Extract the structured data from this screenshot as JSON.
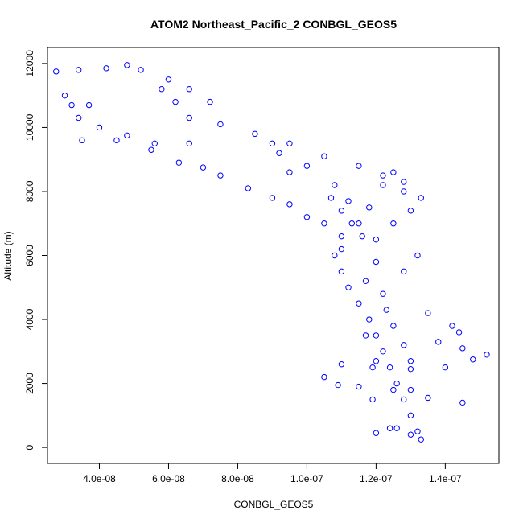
{
  "chart_data": {
    "type": "scatter",
    "title": "ATOM2 Northeast_Pacific_2 CONBGL_GEOS5",
    "xlabel": "CONBGL_GEOS5",
    "ylabel": "Altitude (m)",
    "xlim": [
      2.5e-08,
      1.555e-07
    ],
    "ylim": [
      -500,
      12500
    ],
    "xticks": [
      4e-08,
      6e-08,
      8e-08,
      1e-07,
      1.2e-07,
      1.4e-07
    ],
    "xtick_labels": [
      "4.0e-08",
      "6.0e-08",
      "8.0e-08",
      "1.0e-07",
      "1.2e-07",
      "1.4e-07"
    ],
    "yticks": [
      0,
      2000,
      4000,
      6000,
      8000,
      10000,
      12000
    ],
    "ytick_labels": [
      "0",
      "2000",
      "4000",
      "6000",
      "8000",
      "10000",
      "12000"
    ],
    "marker": "open-circle",
    "color": "#0000ff",
    "grid": false,
    "series": [
      {
        "points": [
          [
            2.75e-08,
            11750
          ],
          [
            3.4e-08,
            11800
          ],
          [
            4.2e-08,
            11850
          ],
          [
            4.8e-08,
            11950
          ],
          [
            5.2e-08,
            11800
          ],
          [
            6e-08,
            11500
          ],
          [
            6.6e-08,
            11200
          ],
          [
            7.2e-08,
            10800
          ],
          [
            5.8e-08,
            11200
          ],
          [
            6.2e-08,
            10800
          ],
          [
            3.2e-08,
            10700
          ],
          [
            3.7e-08,
            10700
          ],
          [
            3e-08,
            11000
          ],
          [
            3.4e-08,
            10300
          ],
          [
            4e-08,
            10000
          ],
          [
            4.8e-08,
            9750
          ],
          [
            5.6e-08,
            9500
          ],
          [
            6.6e-08,
            9500
          ],
          [
            6.6e-08,
            10300
          ],
          [
            7.5e-08,
            10100
          ],
          [
            8.5e-08,
            9800
          ],
          [
            9.5e-08,
            9500
          ],
          [
            1.05e-07,
            9100
          ],
          [
            1.15e-07,
            8800
          ],
          [
            1.22e-07,
            8500
          ],
          [
            1.28e-07,
            8300
          ],
          [
            1.33e-07,
            7800
          ],
          [
            1.3e-07,
            7400
          ],
          [
            1.25e-07,
            7000
          ],
          [
            1.2e-07,
            6500
          ],
          [
            3.5e-08,
            9600
          ],
          [
            4.5e-08,
            9600
          ],
          [
            5.5e-08,
            9300
          ],
          [
            6.3e-08,
            8900
          ],
          [
            7e-08,
            8750
          ],
          [
            7.5e-08,
            8500
          ],
          [
            8.3e-08,
            8100
          ],
          [
            9e-08,
            7800
          ],
          [
            9.5e-08,
            7600
          ],
          [
            1e-07,
            7200
          ],
          [
            1.05e-07,
            7000
          ],
          [
            1.1e-07,
            6600
          ],
          [
            1.08e-07,
            6000
          ],
          [
            1.1e-07,
            5500
          ],
          [
            1.12e-07,
            5000
          ],
          [
            1.15e-07,
            4500
          ],
          [
            1.18e-07,
            4000
          ],
          [
            1.2e-07,
            3500
          ],
          [
            1.22e-07,
            3000
          ],
          [
            1.24e-07,
            2500
          ],
          [
            1.26e-07,
            2000
          ],
          [
            1.28e-07,
            1500
          ],
          [
            1.3e-07,
            1000
          ],
          [
            1.32e-07,
            500
          ],
          [
            1.33e-07,
            250
          ],
          [
            1.2e-07,
            450
          ],
          [
            1.19e-07,
            1500
          ],
          [
            1.19e-07,
            2500
          ],
          [
            1.17e-07,
            3500
          ],
          [
            1.22e-07,
            4800
          ],
          [
            1.28e-07,
            5500
          ],
          [
            1.32e-07,
            6000
          ],
          [
            1.25e-07,
            3800
          ],
          [
            1.28e-07,
            3200
          ],
          [
            1.3e-07,
            2700
          ],
          [
            1.35e-07,
            4200
          ],
          [
            1.42e-07,
            3800
          ],
          [
            1.44e-07,
            3600
          ],
          [
            1.38e-07,
            3300
          ],
          [
            1.45e-07,
            3100
          ],
          [
            1.52e-07,
            2900
          ],
          [
            1.48e-07,
            2750
          ],
          [
            1.4e-07,
            2500
          ],
          [
            1.3e-07,
            2450
          ],
          [
            1.2e-07,
            2700
          ],
          [
            1.1e-07,
            2600
          ],
          [
            1.05e-07,
            2200
          ],
          [
            1.09e-07,
            1950
          ],
          [
            1.15e-07,
            1900
          ],
          [
            1.25e-07,
            1800
          ],
          [
            1.35e-07,
            1550
          ],
          [
            1.45e-07,
            1400
          ],
          [
            1.3e-07,
            1800
          ],
          [
            1.26e-07,
            600
          ],
          [
            1.24e-07,
            600
          ],
          [
            1.3e-07,
            400
          ],
          [
            1.22e-07,
            8200
          ],
          [
            1.18e-07,
            7500
          ],
          [
            1.15e-07,
            7000
          ],
          [
            1.1e-07,
            6200
          ],
          [
            9.5e-08,
            8600
          ],
          [
            9.2e-08,
            9200
          ],
          [
            9e-08,
            9500
          ],
          [
            1e-07,
            8800
          ],
          [
            1.08e-07,
            8200
          ],
          [
            1.12e-07,
            7700
          ],
          [
            1.13e-07,
            7000
          ],
          [
            1.16e-07,
            6600
          ],
          [
            1.1e-07,
            7400
          ],
          [
            1.07e-07,
            7800
          ],
          [
            1.25e-07,
            8600
          ],
          [
            1.28e-07,
            8000
          ],
          [
            1.2e-07,
            5800
          ],
          [
            1.17e-07,
            5200
          ],
          [
            1.23e-07,
            4300
          ]
        ]
      }
    ]
  }
}
